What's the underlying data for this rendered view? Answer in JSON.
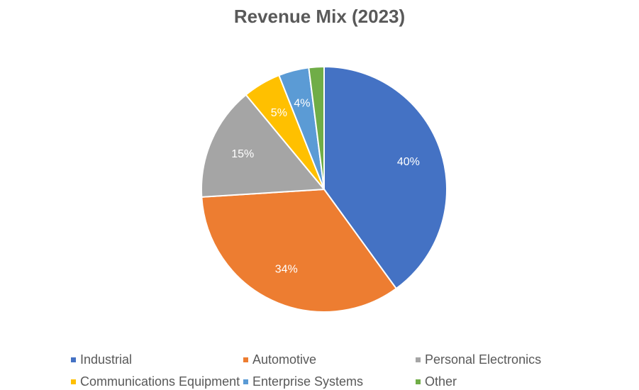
{
  "chart_data": {
    "type": "pie",
    "title": "Revenue Mix (2023)",
    "categories": [
      "Industrial",
      "Automotive",
      "Personal Electronics",
      "Communications Equipment",
      "Enterprise Systems",
      "Other"
    ],
    "values": [
      40,
      34,
      15,
      5,
      4,
      2
    ],
    "data_labels": [
      "40%",
      "34%",
      "15%",
      "5%",
      "4%",
      ""
    ],
    "colors": [
      "#4472C4",
      "#ED7D31",
      "#A5A5A5",
      "#FFC000",
      "#5B9BD5",
      "#70AD47"
    ],
    "legend_position": "bottom",
    "start_angle_deg": 0,
    "direction": "clockwise"
  }
}
